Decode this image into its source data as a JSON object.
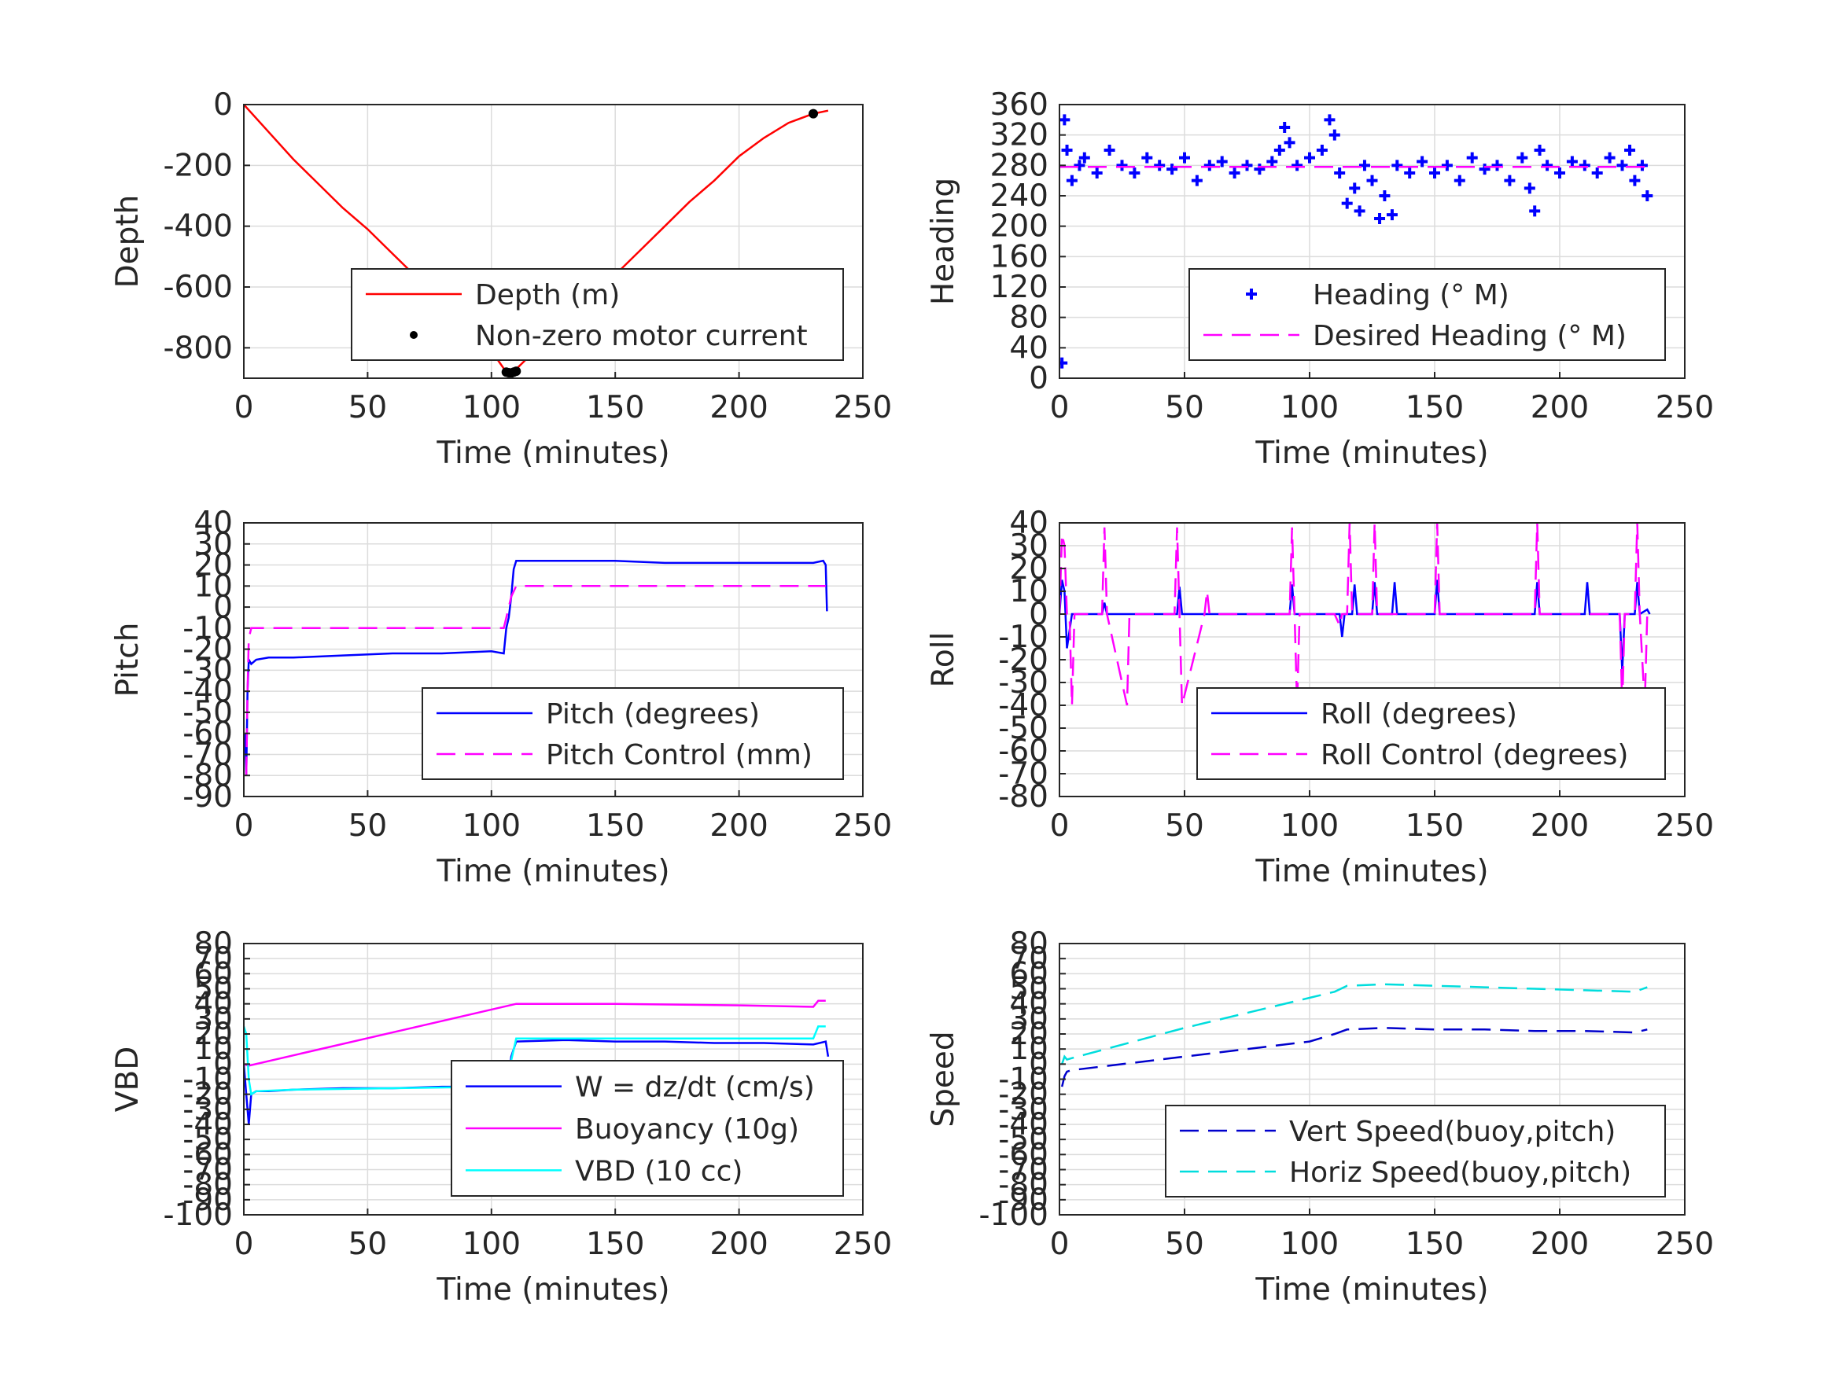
{
  "figure": {
    "background": "#ffffff"
  },
  "chart_data": [
    {
      "id": "depth",
      "type": "line",
      "title": "",
      "xlabel": "Time (minutes)",
      "ylabel": "Depth",
      "xlim": [
        0,
        250
      ],
      "ylim": [
        -900,
        0
      ],
      "xticks": [
        0,
        50,
        100,
        150,
        200,
        250
      ],
      "yticks": [
        -800,
        -600,
        -400,
        -200,
        0
      ],
      "grid": true,
      "legend_position": "lower-right",
      "series": [
        {
          "name": "Depth (m)",
          "style": "solid",
          "color": "#ff0000",
          "marker": "none",
          "x": [
            0,
            10,
            20,
            30,
            40,
            50,
            60,
            70,
            80,
            90,
            100,
            106,
            110,
            120,
            130,
            140,
            150,
            160,
            170,
            180,
            190,
            200,
            210,
            220,
            230,
            236
          ],
          "y": [
            0,
            -90,
            -180,
            -260,
            -340,
            -410,
            -490,
            -570,
            -650,
            -730,
            -810,
            -880,
            -870,
            -790,
            -710,
            -630,
            -560,
            -480,
            -400,
            -320,
            -250,
            -170,
            -110,
            -60,
            -30,
            -20
          ]
        },
        {
          "name": "Non-zero motor current",
          "style": "none",
          "color": "#000000",
          "marker": "dot",
          "x": [
            106,
            107,
            108,
            109,
            110,
            230
          ],
          "y": [
            -880,
            -882,
            -883,
            -880,
            -877,
            -30
          ]
        }
      ]
    },
    {
      "id": "heading",
      "type": "scatter",
      "title": "",
      "xlabel": "Time (minutes)",
      "ylabel": "Heading",
      "xlim": [
        0,
        250
      ],
      "ylim": [
        0,
        360
      ],
      "xticks": [
        0,
        50,
        100,
        150,
        200,
        250
      ],
      "yticks": [
        0,
        40,
        80,
        120,
        160,
        200,
        240,
        280,
        320,
        360
      ],
      "grid": true,
      "legend_position": "lower-right",
      "series": [
        {
          "name": "Heading (° M)",
          "style": "none",
          "color": "#0000ff",
          "marker": "plus",
          "x": [
            1,
            2,
            3,
            5,
            8,
            10,
            15,
            20,
            25,
            30,
            35,
            40,
            45,
            50,
            55,
            60,
            65,
            70,
            75,
            80,
            85,
            88,
            90,
            92,
            95,
            100,
            105,
            108,
            110,
            112,
            115,
            118,
            120,
            122,
            125,
            128,
            130,
            133,
            135,
            140,
            145,
            150,
            155,
            160,
            165,
            170,
            175,
            180,
            185,
            188,
            190,
            192,
            195,
            200,
            205,
            210,
            215,
            220,
            225,
            228,
            230,
            233,
            235
          ],
          "y": [
            20,
            340,
            300,
            260,
            280,
            290,
            270,
            300,
            280,
            270,
            290,
            280,
            275,
            290,
            260,
            280,
            285,
            270,
            280,
            275,
            285,
            300,
            330,
            310,
            280,
            290,
            300,
            340,
            320,
            270,
            230,
            250,
            220,
            280,
            260,
            210,
            240,
            215,
            280,
            270,
            285,
            270,
            280,
            260,
            290,
            275,
            280,
            260,
            290,
            250,
            220,
            300,
            280,
            270,
            285,
            280,
            270,
            290,
            280,
            300,
            260,
            280,
            240
          ]
        },
        {
          "name": "Desired Heading (° M)",
          "style": "dashed",
          "color": "#ff00ff",
          "marker": "none",
          "x": [
            0,
            235
          ],
          "y": [
            278,
            278
          ]
        }
      ]
    },
    {
      "id": "pitch",
      "type": "line",
      "title": "",
      "xlabel": "Time (minutes)",
      "ylabel": "Pitch",
      "xlim": [
        0,
        250
      ],
      "ylim": [
        -90,
        40
      ],
      "xticks": [
        0,
        50,
        100,
        150,
        200,
        250
      ],
      "yticks": [
        -90,
        -80,
        -70,
        -60,
        -50,
        -40,
        -30,
        -20,
        -10,
        0,
        10,
        20,
        30,
        40
      ],
      "grid": true,
      "legend_position": "lower-right",
      "series": [
        {
          "name": "Pitch (degrees)",
          "style": "solid",
          "color": "#0000ff",
          "marker": "none",
          "x": [
            0.5,
            1,
            1.5,
            2,
            3,
            5,
            10,
            20,
            40,
            60,
            80,
            100,
            105,
            106,
            107,
            108,
            109,
            110,
            130,
            150,
            170,
            190,
            210,
            230,
            234,
            235,
            235.5
          ],
          "y": [
            -60,
            -80,
            -40,
            -25,
            -27,
            -25,
            -24,
            -24,
            -23,
            -22,
            -22,
            -21,
            -22,
            -10,
            -5,
            5,
            18,
            22,
            22,
            22,
            21,
            21,
            21,
            21,
            22,
            20,
            -2
          ]
        },
        {
          "name": "Pitch Control (mm)",
          "style": "dashed",
          "color": "#ff00ff",
          "marker": "none",
          "x": [
            1,
            1.5,
            2,
            3,
            5,
            50,
            100,
            105,
            106,
            108,
            110,
            150,
            200,
            235
          ],
          "y": [
            -80,
            -40,
            -15,
            -10,
            -10,
            -10,
            -10,
            -10,
            -5,
            5,
            10,
            10,
            10,
            10
          ]
        }
      ]
    },
    {
      "id": "roll",
      "type": "line",
      "title": "",
      "xlabel": "Time (minutes)",
      "ylabel": "Roll",
      "xlim": [
        0,
        250
      ],
      "ylim": [
        -80,
        40
      ],
      "xticks": [
        0,
        50,
        100,
        150,
        200,
        250
      ],
      "yticks": [
        -80,
        -70,
        -60,
        -50,
        -40,
        -30,
        -20,
        -10,
        0,
        10,
        20,
        30,
        40
      ],
      "grid": true,
      "legend_position": "lower-right",
      "series": [
        {
          "name": "Roll (degrees)",
          "style": "solid",
          "color": "#0000ff",
          "marker": "none",
          "x": [
            0,
            1,
            2,
            3,
            5,
            10,
            17,
            18,
            19,
            40,
            47,
            48,
            49,
            90,
            92,
            93,
            94,
            110,
            112,
            113,
            114,
            117,
            118,
            119,
            125,
            126,
            127,
            133,
            134,
            135,
            150,
            151,
            152,
            190,
            191,
            192,
            210,
            211,
            212,
            220,
            224,
            225,
            226,
            230,
            231,
            232,
            235,
            236
          ],
          "y": [
            0,
            15,
            10,
            -15,
            0,
            0,
            0,
            5,
            0,
            0,
            0,
            12,
            0,
            0,
            0,
            13,
            0,
            0,
            0,
            -10,
            0,
            0,
            13,
            0,
            0,
            14,
            0,
            0,
            14,
            0,
            0,
            15,
            0,
            0,
            14,
            0,
            0,
            14,
            0,
            0,
            0,
            -25,
            0,
            0,
            14,
            0,
            2,
            0
          ]
        },
        {
          "name": "Roll Control (degrees)",
          "style": "dashed",
          "color": "#ff00ff",
          "marker": "none",
          "x": [
            0,
            1,
            2,
            3,
            4,
            5,
            6,
            7,
            8,
            17,
            18,
            19,
            27,
            28,
            29,
            46,
            47,
            48,
            49,
            58,
            59,
            60,
            92,
            93,
            94,
            95,
            96,
            97,
            110,
            112,
            113,
            115,
            116,
            117,
            125,
            126,
            127,
            150,
            151,
            152,
            190,
            191,
            192,
            224,
            225,
            226,
            230,
            231,
            232,
            234,
            235
          ],
          "y": [
            0,
            35,
            30,
            0,
            0,
            -40,
            0,
            0,
            0,
            0,
            38,
            0,
            -40,
            0,
            0,
            0,
            38,
            0,
            -40,
            0,
            10,
            0,
            0,
            38,
            0,
            -40,
            0,
            0,
            0,
            -5,
            0,
            0,
            40,
            0,
            0,
            40,
            0,
            0,
            40,
            0,
            0,
            40,
            0,
            0,
            -40,
            0,
            0,
            40,
            0,
            -40,
            0
          ]
        }
      ]
    },
    {
      "id": "vbd",
      "type": "line",
      "title": "",
      "xlabel": "Time (minutes)",
      "ylabel": "VBD",
      "xlim": [
        0,
        250
      ],
      "ylim": [
        -100,
        80
      ],
      "xticks": [
        0,
        50,
        100,
        150,
        200,
        250
      ],
      "yticks": [
        -100,
        -90,
        -80,
        -70,
        -60,
        -50,
        -40,
        -30,
        -20,
        -10,
        0,
        10,
        20,
        30,
        40,
        50,
        60,
        70,
        80
      ],
      "grid": true,
      "legend_position": "lower-right",
      "series": [
        {
          "name": "W = dz/dt (cm/s)",
          "style": "solid",
          "color": "#0000ff",
          "marker": "none",
          "x": [
            0,
            1,
            2,
            3,
            5,
            10,
            20,
            40,
            60,
            80,
            100,
            105,
            107,
            108,
            110,
            130,
            150,
            170,
            190,
            210,
            230,
            235,
            236
          ],
          "y": [
            0,
            -20,
            -40,
            -20,
            -18,
            -18,
            -17,
            -16,
            -16,
            -15,
            -15,
            -15,
            -8,
            5,
            15,
            16,
            15,
            15,
            14,
            14,
            13,
            15,
            5
          ]
        },
        {
          "name": "Buoyancy (10g)",
          "style": "solid",
          "color": "#ff00ff",
          "marker": "none",
          "x": [
            0,
            2,
            110,
            150,
            200,
            230,
            232,
            235
          ],
          "y": [
            0,
            -1,
            40,
            40,
            39,
            38,
            42,
            42
          ]
        },
        {
          "name": "VBD (10 cc)",
          "style": "solid",
          "color": "#00ffff",
          "marker": "none",
          "x": [
            0,
            1,
            2,
            3,
            5,
            20,
            60,
            100,
            105,
            107,
            110,
            150,
            200,
            230,
            232,
            235
          ],
          "y": [
            25,
            20,
            -10,
            -20,
            -18,
            -17,
            -16,
            -15,
            -15,
            -5,
            17,
            17,
            17,
            17,
            25,
            25
          ]
        }
      ]
    },
    {
      "id": "speed",
      "type": "line",
      "title": "",
      "xlabel": "Time (minutes)",
      "ylabel": "Speed",
      "xlim": [
        0,
        250
      ],
      "ylim": [
        -100,
        80
      ],
      "xticks": [
        0,
        50,
        100,
        150,
        200,
        250
      ],
      "yticks": [
        -100,
        -90,
        -80,
        -70,
        -60,
        -50,
        -40,
        -30,
        -20,
        -10,
        0,
        10,
        20,
        30,
        40,
        50,
        60,
        70,
        80
      ],
      "grid": true,
      "legend_position": "lower-right",
      "series": [
        {
          "name": "Vert Speed(buoy,pitch)",
          "style": "dashed",
          "color": "#0000cc",
          "marker": "none",
          "x": [
            1,
            2,
            3,
            5,
            50,
            100,
            110,
            115,
            130,
            150,
            170,
            190,
            210,
            230,
            235
          ],
          "y": [
            -15,
            -8,
            -5,
            -4,
            5,
            15,
            20,
            23,
            24,
            23,
            23,
            22,
            22,
            21,
            23
          ]
        },
        {
          "name": "Horiz Speed(buoy,pitch)",
          "style": "dashed",
          "color": "#00dddd",
          "marker": "none",
          "x": [
            1,
            2,
            3,
            5,
            50,
            100,
            110,
            115,
            130,
            150,
            170,
            190,
            210,
            230,
            235
          ],
          "y": [
            0,
            5,
            3,
            4,
            24,
            44,
            48,
            52,
            53,
            52,
            51,
            50,
            49,
            48,
            51
          ]
        }
      ]
    }
  ]
}
